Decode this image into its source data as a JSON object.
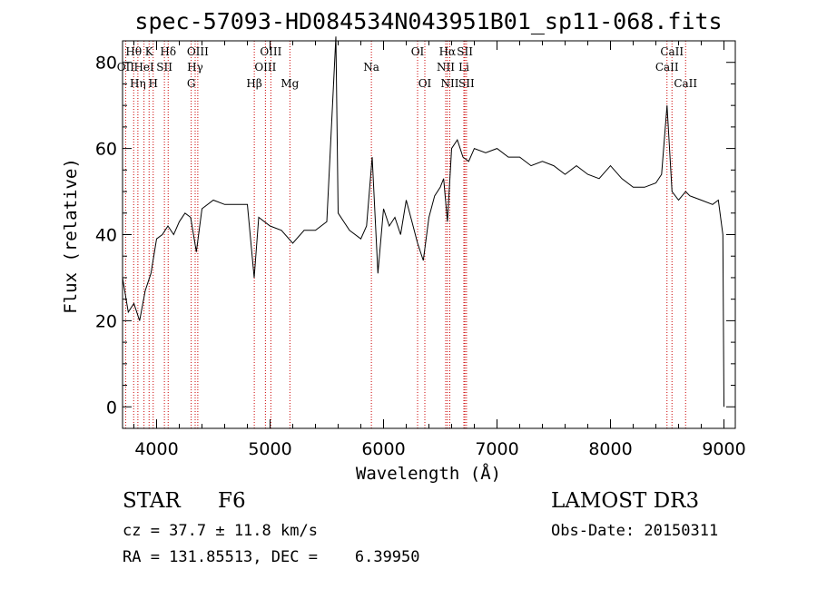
{
  "chart_data": {
    "type": "line",
    "title": "spec-57093-HD084534N043951B01_sp11-068.fits",
    "xlabel": "Wavelength (Å)",
    "ylabel": "Flux (relative)",
    "xlim": [
      3700,
      9100
    ],
    "ylim": [
      -5,
      85
    ],
    "xticks": [
      4000,
      5000,
      6000,
      7000,
      8000,
      9000
    ],
    "yticks": [
      0,
      20,
      40,
      60,
      80
    ],
    "series": [
      {
        "name": "flux",
        "x": [
          3700,
          3750,
          3800,
          3850,
          3900,
          3950,
          4000,
          4050,
          4100,
          4150,
          4200,
          4250,
          4300,
          4350,
          4400,
          4500,
          4600,
          4700,
          4800,
          4860,
          4900,
          5000,
          5100,
          5200,
          5300,
          5400,
          5500,
          5580,
          5600,
          5700,
          5800,
          5850,
          5900,
          5950,
          6000,
          6050,
          6100,
          6150,
          6200,
          6250,
          6300,
          6350,
          6400,
          6450,
          6500,
          6530,
          6563,
          6600,
          6650,
          6700,
          6750,
          6800,
          6900,
          7000,
          7100,
          7200,
          7300,
          7400,
          7500,
          7600,
          7700,
          7800,
          7900,
          8000,
          8100,
          8200,
          8300,
          8400,
          8450,
          8498,
          8542,
          8600,
          8662,
          8700,
          8800,
          8900,
          8950,
          8990,
          9000
        ],
        "values": [
          30,
          22,
          24,
          20,
          27,
          31,
          39,
          40,
          42,
          40,
          43,
          45,
          44,
          36,
          46,
          48,
          47,
          47,
          47,
          30,
          44,
          42,
          41,
          38,
          41,
          41,
          43,
          86,
          45,
          41,
          39,
          42,
          58,
          31,
          46,
          42,
          44,
          40,
          48,
          43,
          38,
          34,
          44,
          49,
          51,
          53,
          43,
          60,
          62,
          58,
          57,
          60,
          59,
          60,
          58,
          58,
          56,
          57,
          56,
          54,
          56,
          54,
          53,
          56,
          53,
          51,
          51,
          52,
          54,
          70,
          50,
          48,
          50,
          49,
          48,
          47,
          48,
          40,
          0
        ]
      }
    ],
    "line_labels": [
      {
        "text": "Hθ",
        "row": 1,
        "wave": 3798
      },
      {
        "text": "OII",
        "row": 2,
        "wave": 3727
      },
      {
        "text": "Hη",
        "row": 3,
        "wave": 3835
      },
      {
        "text": "K",
        "row": 1,
        "wave": 3934
      },
      {
        "text": "HeI",
        "row": 2,
        "wave": 3889
      },
      {
        "text": "SII",
        "row": 2,
        "wave": 4069
      },
      {
        "text": "H",
        "row": 3,
        "wave": 3970
      },
      {
        "text": "Hδ",
        "row": 1,
        "wave": 4102
      },
      {
        "text": "OIII",
        "row": 1,
        "wave": 4363
      },
      {
        "text": "Hγ",
        "row": 2,
        "wave": 4340
      },
      {
        "text": "G",
        "row": 3,
        "wave": 4305
      },
      {
        "text": "OIII",
        "row": 1,
        "wave": 5007
      },
      {
        "text": "OIII",
        "row": 2,
        "wave": 4959
      },
      {
        "text": "Hβ",
        "row": 3,
        "wave": 4861
      },
      {
        "text": "Mg",
        "row": 3,
        "wave": 5175
      },
      {
        "text": "Na",
        "row": 2,
        "wave": 5893
      },
      {
        "text": "OI",
        "row": 1,
        "wave": 6300
      },
      {
        "text": "OI",
        "row": 3,
        "wave": 6364
      },
      {
        "text": "Hα",
        "row": 1,
        "wave": 6563
      },
      {
        "text": "NII",
        "row": 2,
        "wave": 6548
      },
      {
        "text": "NII",
        "row": 3,
        "wave": 6584
      },
      {
        "text": "SII",
        "row": 1,
        "wave": 6717
      },
      {
        "text": "Li",
        "row": 2,
        "wave": 6708
      },
      {
        "text": "SII",
        "row": 3,
        "wave": 6731
      },
      {
        "text": "CaII",
        "row": 1,
        "wave": 8542
      },
      {
        "text": "CaII",
        "row": 2,
        "wave": 8498
      },
      {
        "text": "CaII",
        "row": 3,
        "wave": 8662
      }
    ],
    "line_waves": [
      3727,
      3798,
      3835,
      3889,
      3934,
      3970,
      4069,
      4102,
      4305,
      4340,
      4363,
      4861,
      4959,
      5007,
      5175,
      5893,
      6300,
      6364,
      6548,
      6563,
      6584,
      6708,
      6717,
      6731,
      8498,
      8542,
      8662
    ]
  },
  "info": {
    "class_label": "STAR",
    "subclass": "F6",
    "survey": "LAMOST DR3",
    "redshift": "cz = 37.7 ± 11.8 km/s",
    "obs_date": "Obs-Date: 20150311",
    "coords": "RA = 131.85513, DEC =    6.39950"
  },
  "colors": {
    "line_marker": "#cc0000",
    "spectrum": "#000000"
  }
}
